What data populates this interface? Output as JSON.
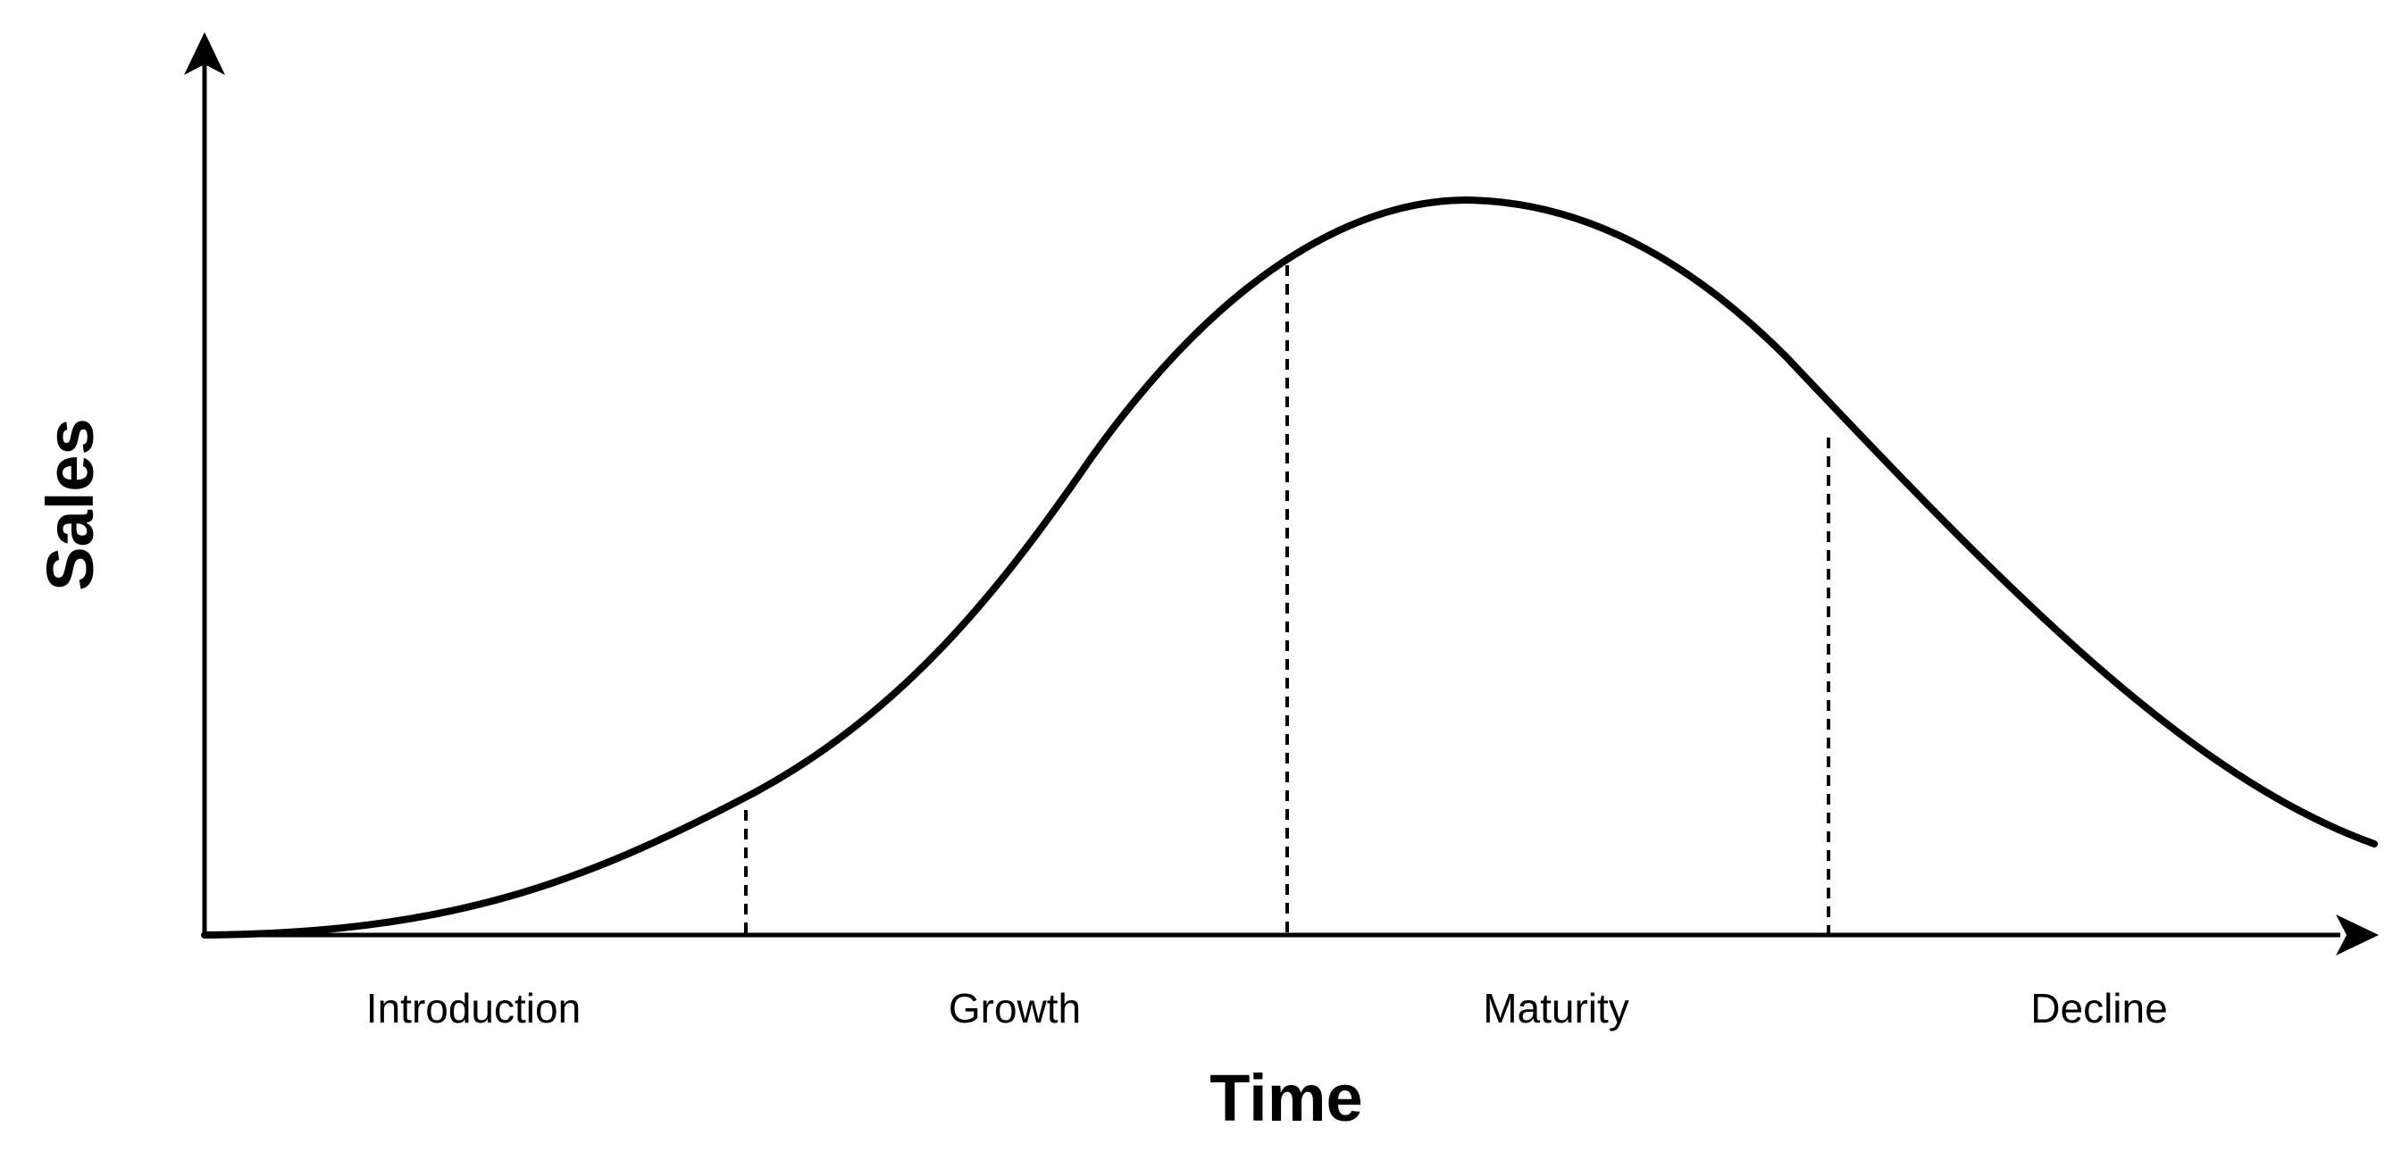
{
  "axes": {
    "y_title": "Sales",
    "x_title": "Time"
  },
  "stages": [
    {
      "label": "Introduction"
    },
    {
      "label": "Growth"
    },
    {
      "label": "Maturity"
    },
    {
      "label": "Decline"
    }
  ],
  "colors": {
    "stroke": "#000000",
    "background": "#ffffff"
  }
}
